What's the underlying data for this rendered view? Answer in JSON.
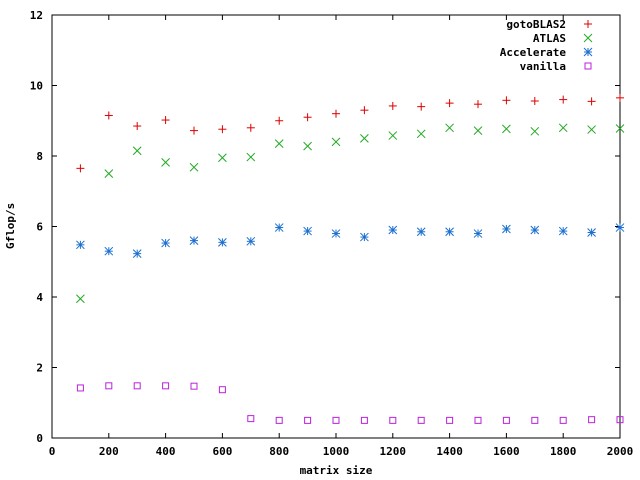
{
  "chart_data": {
    "type": "scatter",
    "xlabel": "matrix size",
    "ylabel": "Gflop/s",
    "xlim": [
      0,
      2000
    ],
    "ylim": [
      0,
      12
    ],
    "xticks": [
      0,
      200,
      400,
      600,
      800,
      1000,
      1200,
      1400,
      1600,
      1800,
      2000
    ],
    "yticks": [
      0,
      2,
      4,
      6,
      8,
      10,
      12
    ],
    "grid": false,
    "legend_position": "top-right",
    "x": [
      100,
      200,
      300,
      400,
      500,
      600,
      700,
      800,
      900,
      1000,
      1100,
      1200,
      1300,
      1400,
      1500,
      1600,
      1700,
      1800,
      1900,
      2000
    ],
    "series": [
      {
        "name": "gotoBLAS2",
        "marker": "plus",
        "color": "#dd0000",
        "values": [
          7.65,
          9.15,
          8.85,
          9.02,
          8.72,
          8.76,
          8.8,
          9.0,
          9.1,
          9.2,
          9.3,
          9.42,
          9.4,
          9.5,
          9.47,
          9.58,
          9.56,
          9.6,
          9.55,
          9.65
        ]
      },
      {
        "name": "ATLAS",
        "marker": "cross",
        "color": "#22aa22",
        "values": [
          3.95,
          7.5,
          8.15,
          7.82,
          7.68,
          7.95,
          7.97,
          8.35,
          8.28,
          8.4,
          8.5,
          8.58,
          8.63,
          8.8,
          8.72,
          8.77,
          8.7,
          8.8,
          8.75,
          8.78
        ]
      },
      {
        "name": "Accelerate",
        "marker": "star",
        "color": "#1a6fd0",
        "values": [
          5.48,
          5.3,
          5.23,
          5.53,
          5.6,
          5.55,
          5.58,
          5.97,
          5.87,
          5.8,
          5.7,
          5.9,
          5.85,
          5.85,
          5.8,
          5.93,
          5.9,
          5.87,
          5.83,
          5.97
        ]
      },
      {
        "name": "vanilla",
        "marker": "square",
        "color": "#bb22dd",
        "values": [
          1.42,
          1.48,
          1.48,
          1.48,
          1.47,
          1.37,
          0.55,
          0.5,
          0.5,
          0.5,
          0.5,
          0.5,
          0.5,
          0.5,
          0.5,
          0.5,
          0.5,
          0.5,
          0.52,
          0.52
        ]
      }
    ]
  }
}
